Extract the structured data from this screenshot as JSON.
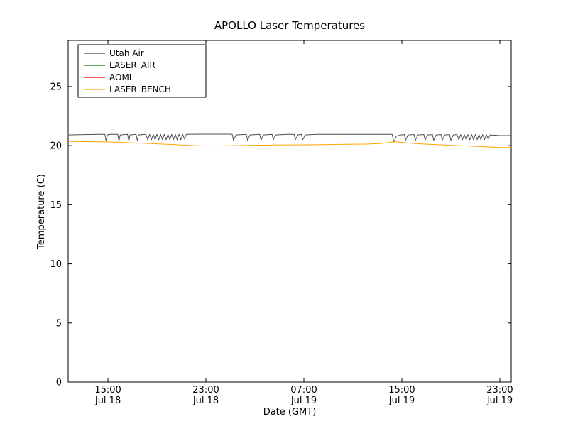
{
  "page": {
    "background": "#ffffff"
  },
  "chart_data": {
    "type": "line",
    "title": "APOLLO Laser Temperatures",
    "xlabel": "Date (GMT)",
    "ylabel": "Temperature (C)",
    "ylim": [
      0,
      28.9
    ],
    "xlim_hours": [
      11.75,
      47.93
    ],
    "x_unit": "hours since Jul 18 00:00 GMT",
    "grid": false,
    "legend_position": "upper left",
    "y_ticks": [
      0,
      5,
      10,
      15,
      20,
      25
    ],
    "x_ticks": [
      {
        "hour": 15,
        "time": "15:00",
        "date": "Jul 18"
      },
      {
        "hour": 23,
        "time": "23:00",
        "date": "Jul 18"
      },
      {
        "hour": 31,
        "time": "07:00",
        "date": "Jul 19"
      },
      {
        "hour": 39,
        "time": "15:00",
        "date": "Jul 19"
      },
      {
        "hour": 47,
        "time": "23:00",
        "date": "Jul 19"
      }
    ],
    "series": [
      {
        "name": "Utah Air",
        "color": "#4d4d4d",
        "points": [
          [
            11.8,
            20.9
          ],
          [
            13.0,
            20.93
          ],
          [
            14.2,
            20.95
          ],
          [
            14.75,
            20.95
          ],
          [
            14.85,
            20.4
          ],
          [
            14.95,
            20.9
          ],
          [
            15.2,
            20.95
          ],
          [
            15.8,
            20.95
          ],
          [
            15.9,
            20.4
          ],
          [
            16.0,
            20.9
          ],
          [
            16.6,
            20.95
          ],
          [
            16.7,
            20.4
          ],
          [
            16.8,
            20.9
          ],
          [
            17.3,
            20.95
          ],
          [
            17.4,
            20.45
          ],
          [
            17.5,
            20.9
          ],
          [
            18.1,
            20.95
          ],
          [
            18.25,
            20.5
          ],
          [
            18.4,
            20.95
          ],
          [
            18.55,
            20.5
          ],
          [
            18.7,
            20.95
          ],
          [
            18.85,
            20.5
          ],
          [
            19.0,
            20.95
          ],
          [
            19.15,
            20.5
          ],
          [
            19.3,
            20.95
          ],
          [
            19.45,
            20.5
          ],
          [
            19.6,
            20.95
          ],
          [
            19.75,
            20.5
          ],
          [
            19.9,
            20.95
          ],
          [
            20.05,
            20.5
          ],
          [
            20.2,
            20.95
          ],
          [
            20.35,
            20.5
          ],
          [
            20.5,
            20.95
          ],
          [
            20.65,
            20.5
          ],
          [
            20.8,
            20.95
          ],
          [
            20.95,
            20.5
          ],
          [
            21.1,
            20.95
          ],
          [
            21.25,
            20.55
          ],
          [
            21.4,
            20.95
          ],
          [
            22.5,
            20.97
          ],
          [
            24.0,
            20.97
          ],
          [
            25.0,
            20.97
          ],
          [
            25.15,
            20.95
          ],
          [
            25.25,
            20.45
          ],
          [
            25.45,
            20.9
          ],
          [
            26.3,
            20.95
          ],
          [
            26.4,
            20.45
          ],
          [
            26.6,
            20.9
          ],
          [
            27.4,
            20.95
          ],
          [
            27.5,
            20.45
          ],
          [
            27.7,
            20.9
          ],
          [
            28.4,
            20.95
          ],
          [
            28.5,
            20.5
          ],
          [
            28.7,
            20.9
          ],
          [
            29.6,
            20.95
          ],
          [
            30.2,
            20.95
          ],
          [
            30.3,
            20.5
          ],
          [
            30.5,
            20.9
          ],
          [
            30.8,
            20.95
          ],
          [
            30.9,
            20.5
          ],
          [
            31.1,
            20.9
          ],
          [
            32.0,
            20.95
          ],
          [
            34.0,
            20.96
          ],
          [
            36.0,
            20.96
          ],
          [
            37.8,
            20.95
          ],
          [
            38.2,
            20.95
          ],
          [
            38.35,
            20.3
          ],
          [
            38.55,
            20.8
          ],
          [
            38.9,
            20.9
          ],
          [
            39.2,
            20.93
          ],
          [
            39.3,
            20.45
          ],
          [
            39.5,
            20.9
          ],
          [
            40.0,
            20.93
          ],
          [
            40.1,
            20.45
          ],
          [
            40.3,
            20.9
          ],
          [
            40.8,
            20.93
          ],
          [
            40.9,
            20.45
          ],
          [
            41.1,
            20.9
          ],
          [
            41.5,
            20.93
          ],
          [
            41.6,
            20.45
          ],
          [
            41.8,
            20.9
          ],
          [
            42.2,
            20.93
          ],
          [
            42.3,
            20.45
          ],
          [
            42.5,
            20.9
          ],
          [
            42.9,
            20.93
          ],
          [
            43.0,
            20.45
          ],
          [
            43.2,
            20.9
          ],
          [
            43.5,
            20.93
          ],
          [
            43.65,
            20.5
          ],
          [
            43.8,
            20.93
          ],
          [
            43.95,
            20.5
          ],
          [
            44.1,
            20.93
          ],
          [
            44.25,
            20.5
          ],
          [
            44.4,
            20.93
          ],
          [
            44.55,
            20.5
          ],
          [
            44.7,
            20.93
          ],
          [
            44.85,
            20.5
          ],
          [
            45.0,
            20.93
          ],
          [
            45.15,
            20.5
          ],
          [
            45.3,
            20.93
          ],
          [
            45.45,
            20.5
          ],
          [
            45.6,
            20.93
          ],
          [
            45.75,
            20.5
          ],
          [
            45.9,
            20.93
          ],
          [
            46.05,
            20.55
          ],
          [
            46.2,
            20.9
          ],
          [
            46.6,
            20.88
          ],
          [
            47.0,
            20.85
          ],
          [
            47.5,
            20.85
          ],
          [
            47.93,
            20.85
          ]
        ]
      },
      {
        "name": "LASER_AIR",
        "color": "#008000",
        "points": []
      },
      {
        "name": "AOML",
        "color": "#ff0000",
        "points": []
      },
      {
        "name": "LASER_BENCH",
        "color": "#ffa500",
        "points": [
          [
            11.8,
            20.35
          ],
          [
            13.0,
            20.34
          ],
          [
            14.5,
            20.32
          ],
          [
            16.0,
            20.28
          ],
          [
            17.5,
            20.22
          ],
          [
            19.0,
            20.15
          ],
          [
            20.5,
            20.08
          ],
          [
            22.0,
            20.0
          ],
          [
            23.0,
            19.97
          ],
          [
            24.0,
            19.98
          ],
          [
            25.5,
            20.0
          ],
          [
            27.0,
            20.03
          ],
          [
            28.5,
            20.05
          ],
          [
            30.0,
            20.06
          ],
          [
            31.5,
            20.07
          ],
          [
            33.0,
            20.09
          ],
          [
            34.5,
            20.11
          ],
          [
            36.0,
            20.13
          ],
          [
            37.2,
            20.17
          ],
          [
            38.0,
            20.27
          ],
          [
            38.4,
            20.33
          ],
          [
            38.8,
            20.3
          ],
          [
            39.5,
            20.22
          ],
          [
            40.5,
            20.15
          ],
          [
            41.5,
            20.1
          ],
          [
            42.5,
            20.05
          ],
          [
            43.5,
            20.0
          ],
          [
            44.5,
            19.96
          ],
          [
            45.5,
            19.92
          ],
          [
            46.3,
            19.88
          ],
          [
            47.0,
            19.85
          ],
          [
            47.93,
            19.84
          ]
        ]
      }
    ]
  }
}
